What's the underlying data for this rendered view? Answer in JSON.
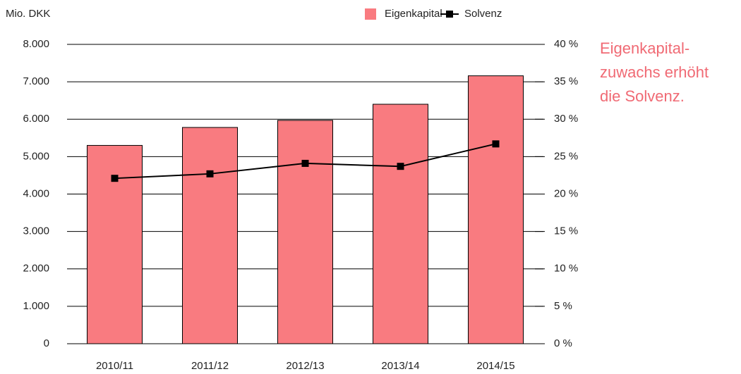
{
  "chart_data": {
    "type": "bar_line",
    "y_label": "Mio. DKK",
    "annotation": [
      "Eigenkapital-",
      "zuwachs erhöht",
      "die Solvenz."
    ],
    "categories": [
      "2010/11",
      "2011/12",
      "2012/13",
      "2013/14",
      "2014/15"
    ],
    "series": [
      {
        "name": "Eigenkapital",
        "color": "#f97b80",
        "values": [
          5300,
          5780,
          5970,
          6400,
          7160
        ]
      },
      {
        "name": "Solvenz",
        "color": "#000000",
        "axis": "y2",
        "values": [
          22.1,
          22.7,
          24.1,
          23.7,
          26.7
        ]
      }
    ],
    "ylim": [
      0,
      8000
    ],
    "yticks": [
      0,
      {
        "value": 1000,
        "label": "1.000"
      },
      {
        "value": 2000,
        "label": "2.000"
      },
      {
        "value": 3000,
        "label": "3.000"
      },
      {
        "value": 4000,
        "label": "4.000"
      },
      {
        "value": 5000,
        "label": "5.000"
      },
      {
        "value": 6000,
        "label": "6.000"
      },
      {
        "value": 7000,
        "label": "7.000"
      },
      {
        "value": 8000,
        "label": "8.000"
      }
    ],
    "y2lim": [
      0,
      40
    ],
    "y2ticks": [
      {
        "value": 0,
        "label": "0 %"
      },
      {
        "value": 5,
        "label": "5 %"
      },
      {
        "value": 10,
        "label": "10 %"
      },
      {
        "value": 15,
        "label": "15 %"
      },
      {
        "value": 20,
        "label": "20 %"
      },
      {
        "value": 25,
        "label": "25 %"
      },
      {
        "value": 30,
        "label": "30 %"
      },
      {
        "value": 35,
        "label": "35 %"
      },
      {
        "value": 40,
        "label": "40 %"
      }
    ],
    "grid": true,
    "legend": "top"
  }
}
